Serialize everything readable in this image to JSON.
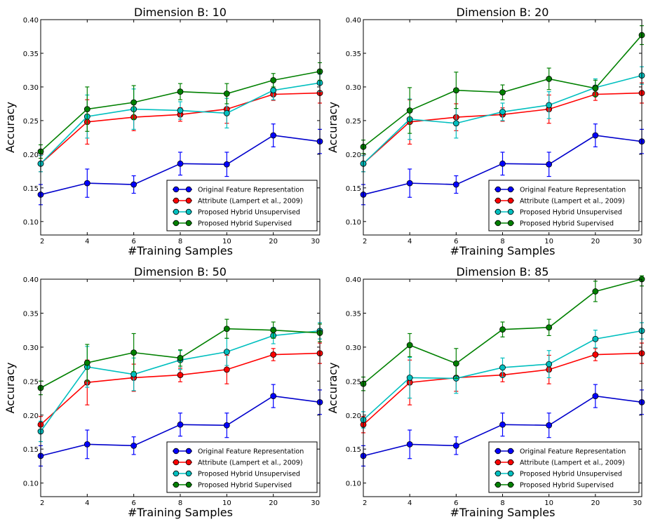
{
  "chart_data": [
    {
      "type": "line",
      "title": "Dimension B: 10",
      "xlabel": "#Training Samples",
      "ylabel": "Accuracy",
      "x": [
        "2",
        "4",
        "6",
        "8",
        "10",
        "20",
        "30"
      ],
      "ylim": [
        0.08,
        0.4
      ],
      "yticks": [
        "0.10",
        "0.15",
        "0.20",
        "0.25",
        "0.30",
        "0.35",
        "0.40"
      ],
      "legend_position": "bottom-right",
      "series": [
        {
          "name": "Original Feature Representation",
          "color": "#0000cc",
          "marker": "#0000ff",
          "values": [
            0.14,
            0.157,
            0.155,
            0.186,
            0.185,
            0.228,
            0.219
          ],
          "errors": [
            0.015,
            0.021,
            0.013,
            0.017,
            0.018,
            0.017,
            0.018
          ]
        },
        {
          "name": "Attribute (Lampert et al., 2009)",
          "color": "#ff0000",
          "marker": "#ff0000",
          "values": [
            0.186,
            0.248,
            0.255,
            0.259,
            0.267,
            0.289,
            0.291
          ],
          "errors": [
            0.012,
            0.033,
            0.02,
            0.01,
            0.021,
            0.009,
            0.015
          ]
        },
        {
          "name": "Proposed Hybrid Unsupervised",
          "color": "#00bfbf",
          "marker": "#00bfbf",
          "values": [
            0.186,
            0.256,
            0.267,
            0.265,
            0.261,
            0.295,
            0.306
          ],
          "errors": [
            0.012,
            0.032,
            0.03,
            0.013,
            0.022,
            0.014,
            0.013
          ]
        },
        {
          "name": "Proposed Hybrid Supervised",
          "color": "#008000",
          "marker": "#008000",
          "values": [
            0.204,
            0.267,
            0.277,
            0.293,
            0.29,
            0.31,
            0.323
          ],
          "errors": [
            0.01,
            0.033,
            0.025,
            0.012,
            0.015,
            0.01,
            0.013
          ]
        }
      ]
    },
    {
      "type": "line",
      "title": "Dimension B: 20",
      "xlabel": "#Training Samples",
      "ylabel": "Accuracy",
      "x": [
        "2",
        "4",
        "6",
        "8",
        "10",
        "20",
        "30"
      ],
      "ylim": [
        0.08,
        0.4
      ],
      "yticks": [
        "0.10",
        "0.15",
        "0.20",
        "0.25",
        "0.30",
        "0.35",
        "0.40"
      ],
      "legend_position": "bottom-right",
      "series": [
        {
          "name": "Original Feature Representation",
          "color": "#0000cc",
          "marker": "#0000ff",
          "values": [
            0.14,
            0.157,
            0.155,
            0.186,
            0.185,
            0.228,
            0.219
          ],
          "errors": [
            0.015,
            0.021,
            0.013,
            0.017,
            0.018,
            0.017,
            0.018
          ]
        },
        {
          "name": "Attribute (Lampert et al., 2009)",
          "color": "#ff0000",
          "marker": "#ff0000",
          "values": [
            0.186,
            0.248,
            0.255,
            0.259,
            0.267,
            0.289,
            0.291
          ],
          "errors": [
            0.012,
            0.033,
            0.02,
            0.01,
            0.021,
            0.009,
            0.015
          ]
        },
        {
          "name": "Proposed Hybrid Unsupervised",
          "color": "#00bfbf",
          "marker": "#00bfbf",
          "values": [
            0.186,
            0.252,
            0.246,
            0.263,
            0.273,
            0.299,
            0.317
          ],
          "errors": [
            0.012,
            0.03,
            0.022,
            0.013,
            0.02,
            0.013,
            0.013
          ]
        },
        {
          "name": "Proposed Hybrid Supervised",
          "color": "#008000",
          "marker": "#008000",
          "values": [
            0.211,
            0.265,
            0.295,
            0.292,
            0.312,
            0.298,
            0.377
          ],
          "errors": [
            0.01,
            0.034,
            0.027,
            0.011,
            0.016,
            0.012,
            0.014
          ]
        }
      ]
    },
    {
      "type": "line",
      "title": "Dimension B: 50",
      "xlabel": "#Training Samples",
      "ylabel": "Accuracy",
      "x": [
        "2",
        "4",
        "6",
        "8",
        "10",
        "20",
        "30"
      ],
      "ylim": [
        0.08,
        0.4
      ],
      "yticks": [
        "0.10",
        "0.15",
        "0.20",
        "0.25",
        "0.30",
        "0.35",
        "0.40"
      ],
      "legend_position": "bottom-right",
      "series": [
        {
          "name": "Original Feature Representation",
          "color": "#0000cc",
          "marker": "#0000ff",
          "values": [
            0.14,
            0.157,
            0.155,
            0.186,
            0.185,
            0.228,
            0.219
          ],
          "errors": [
            0.015,
            0.021,
            0.013,
            0.017,
            0.018,
            0.017,
            0.018
          ]
        },
        {
          "name": "Attribute (Lampert et al., 2009)",
          "color": "#ff0000",
          "marker": "#ff0000",
          "values": [
            0.186,
            0.248,
            0.255,
            0.259,
            0.267,
            0.289,
            0.291
          ],
          "errors": [
            0.012,
            0.033,
            0.02,
            0.01,
            0.021,
            0.009,
            0.015
          ]
        },
        {
          "name": "Proposed Hybrid Unsupervised",
          "color": "#00bfbf",
          "marker": "#00bfbf",
          "values": [
            0.176,
            0.271,
            0.26,
            0.281,
            0.293,
            0.317,
            0.324
          ],
          "errors": [
            0.015,
            0.03,
            0.024,
            0.014,
            0.02,
            0.012,
            0.012
          ]
        },
        {
          "name": "Proposed Hybrid Supervised",
          "color": "#008000",
          "marker": "#008000",
          "values": [
            0.24,
            0.277,
            0.292,
            0.284,
            0.327,
            0.325,
            0.321
          ],
          "errors": [
            0.01,
            0.027,
            0.028,
            0.012,
            0.014,
            0.012,
            0.013
          ]
        }
      ]
    },
    {
      "type": "line",
      "title": "Dimension B: 85",
      "xlabel": "#Training Samples",
      "ylabel": "Accuracy",
      "x": [
        "2",
        "4",
        "6",
        "8",
        "10",
        "20",
        "30"
      ],
      "ylim": [
        0.08,
        0.4
      ],
      "yticks": [
        "0.10",
        "0.15",
        "0.20",
        "0.25",
        "0.30",
        "0.35",
        "0.40"
      ],
      "legend_position": "bottom-right",
      "series": [
        {
          "name": "Original Feature Representation",
          "color": "#0000cc",
          "marker": "#0000ff",
          "values": [
            0.14,
            0.157,
            0.155,
            0.186,
            0.185,
            0.228,
            0.219
          ],
          "errors": [
            0.015,
            0.021,
            0.013,
            0.017,
            0.018,
            0.017,
            0.018
          ]
        },
        {
          "name": "Attribute (Lampert et al., 2009)",
          "color": "#ff0000",
          "marker": "#ff0000",
          "values": [
            0.186,
            0.248,
            0.255,
            0.259,
            0.267,
            0.289,
            0.291
          ],
          "errors": [
            0.012,
            0.033,
            0.02,
            0.01,
            0.021,
            0.009,
            0.015
          ]
        },
        {
          "name": "Proposed Hybrid Unsupervised",
          "color": "#00bfbf",
          "marker": "#00bfbf",
          "values": [
            0.193,
            0.255,
            0.254,
            0.27,
            0.275,
            0.312,
            0.324
          ],
          "errors": [
            0.012,
            0.03,
            0.022,
            0.014,
            0.02,
            0.013,
            0.012
          ]
        },
        {
          "name": "Proposed Hybrid Supervised",
          "color": "#008000",
          "marker": "#008000",
          "values": [
            0.246,
            0.303,
            0.276,
            0.326,
            0.329,
            0.382,
            0.4
          ],
          "errors": [
            0.01,
            0.017,
            0.022,
            0.011,
            0.012,
            0.015,
            0.01
          ]
        }
      ]
    }
  ]
}
